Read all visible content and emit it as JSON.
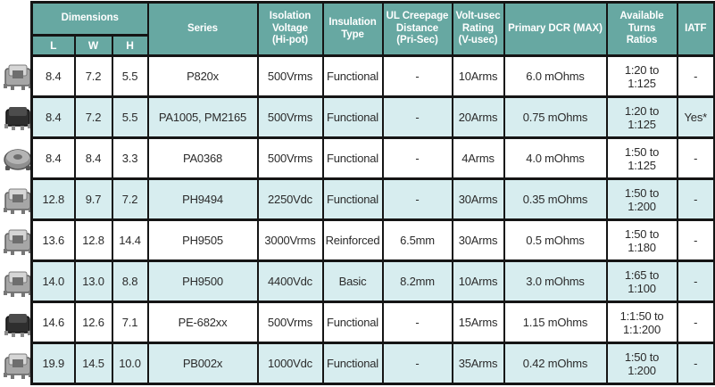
{
  "colors": {
    "header_teal": "#67a8a2",
    "row_alt": "#d7edef",
    "border": "#151515"
  },
  "table": {
    "header": {
      "dimensions_label": "Dimensions",
      "dim_sub": [
        "L",
        "W",
        "H"
      ],
      "columns": [
        "Series",
        "Isolation\nVoltage\n(Hi-pot)",
        "Insulation\nType",
        "UL Creepage\nDistance\n(Pri-Sec)",
        "Volt-usec\nRating\n(V-usec)",
        "Primary DCR (MAX)",
        "Available Turns\nRatios",
        "IATF"
      ]
    },
    "rows": [
      {
        "photo": "smd-transformer-photo",
        "l": "8.4",
        "w": "7.2",
        "h": "5.5",
        "series": "P820x",
        "isolation": "500Vrms",
        "insulation": "Functional",
        "creepage": "-",
        "volt_usec": "10Arms",
        "dcr": "6.0 mOhms",
        "turns": "1:20 to 1:125",
        "iatf": "-"
      },
      {
        "photo": "black-smd-transformer-photo",
        "l": "8.4",
        "w": "7.2",
        "h": "5.5",
        "series": "PA1005, PM2165",
        "isolation": "500Vrms",
        "insulation": "Functional",
        "creepage": "-",
        "volt_usec": "20Arms",
        "dcr": "0.75 mOhms",
        "turns": "1:20 to 1:125",
        "iatf": "Yes*"
      },
      {
        "photo": "toroidal-inductor-photo",
        "l": "8.4",
        "w": "8.4",
        "h": "3.3",
        "series": "PA0368",
        "isolation": "500Vrms",
        "insulation": "Functional",
        "creepage": "-",
        "volt_usec": "4Arms",
        "dcr": "4.0 mOhms",
        "turns": "1:50 to 1:125",
        "iatf": "-"
      },
      {
        "photo": "smd-transformer-photo",
        "l": "12.8",
        "w": "9.7",
        "h": "7.2",
        "series": "PH9494",
        "isolation": "2250Vdc",
        "insulation": "Functional",
        "creepage": "-",
        "volt_usec": "30Arms",
        "dcr": "0.35 mOhms",
        "turns": "1:50 to 1:200",
        "iatf": "-"
      },
      {
        "photo": "smd-transformer-photo",
        "l": "13.6",
        "w": "12.8",
        "h": "14.4",
        "series": "PH9505",
        "isolation": "3000Vrms",
        "insulation": "Reinforced",
        "creepage": "6.5mm",
        "volt_usec": "30Arms",
        "dcr": "0.5 mOhms",
        "turns": "1:50 to 1:180",
        "iatf": "-"
      },
      {
        "photo": "smd-transformer-photo",
        "l": "14.0",
        "w": "13.0",
        "h": "8.8",
        "series": "PH9500",
        "isolation": "4400Vdc",
        "insulation": "Basic",
        "creepage": "8.2mm",
        "volt_usec": "10Arms",
        "dcr": "3.0 mOhms",
        "turns": "1:65 to 1:100",
        "iatf": "-"
      },
      {
        "photo": "black-smd-transformer-photo",
        "l": "14.6",
        "w": "12.6",
        "h": "7.1",
        "series": "PE-682xx",
        "isolation": "500Vrms",
        "insulation": "Functional",
        "creepage": "-",
        "volt_usec": "15Arms",
        "dcr": "1.15 mOhms",
        "turns": "1:1:50 to 1:1:200",
        "iatf": "-"
      },
      {
        "photo": "smd-transformer-photo",
        "l": "19.9",
        "w": "14.5",
        "h": "10.0",
        "series": "PB002x",
        "isolation": "1000Vdc",
        "insulation": "Functional",
        "creepage": "-",
        "volt_usec": "35Arms",
        "dcr": "0.42 mOhms",
        "turns": "1:50 to 1:200",
        "iatf": "-"
      }
    ]
  }
}
